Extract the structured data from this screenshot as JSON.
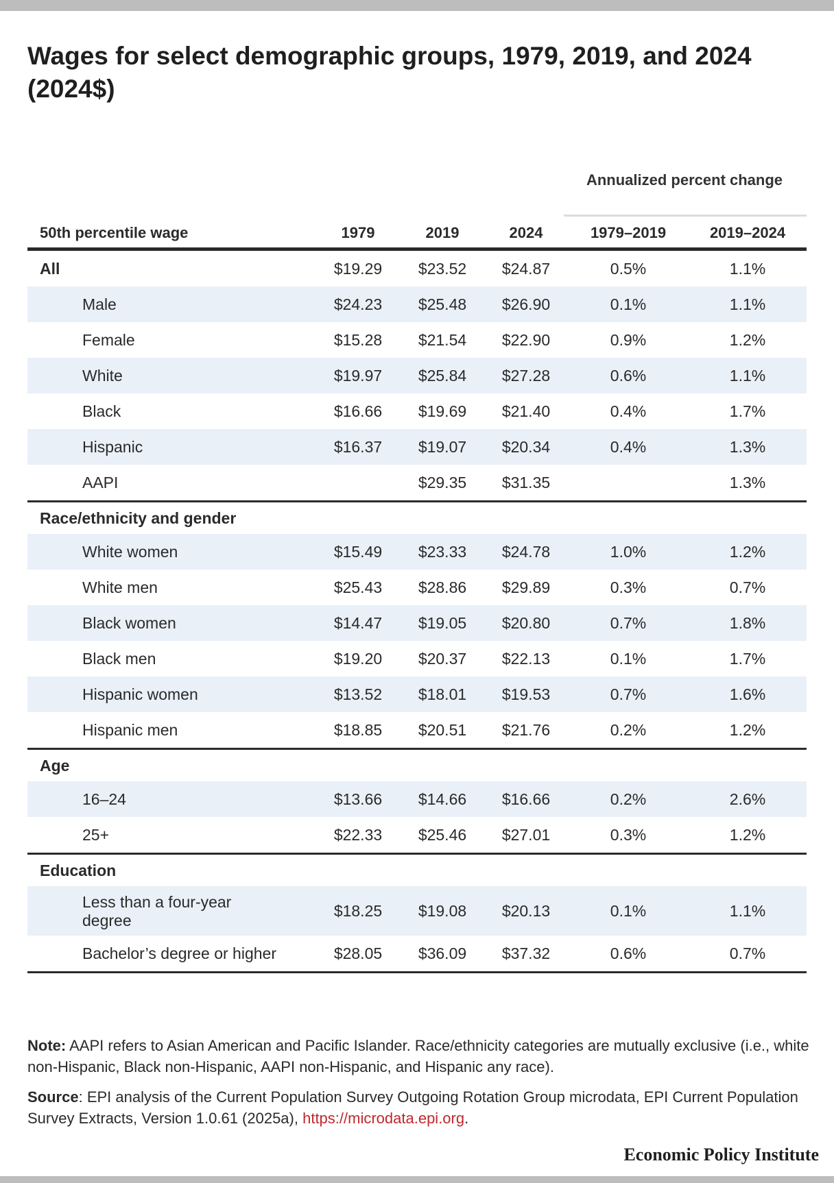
{
  "title": "Wages for select demographic groups, 1979, 2019, and 2024 (2024$)",
  "table": {
    "group_header": "Annualized percent change",
    "columns": [
      "50th percentile wage",
      "1979",
      "2019",
      "2024",
      "1979–2019",
      "2019–2024"
    ],
    "rows": [
      {
        "label": "All",
        "v1979": "$19.29",
        "v2019": "$23.52",
        "v2024": "$24.87",
        "c1": "0.5%",
        "c2": "1.1%"
      },
      {
        "label": "Male",
        "v1979": "$24.23",
        "v2019": "$25.48",
        "v2024": "$26.90",
        "c1": "0.1%",
        "c2": "1.1%"
      },
      {
        "label": "Female",
        "v1979": "$15.28",
        "v2019": "$21.54",
        "v2024": "$22.90",
        "c1": "0.9%",
        "c2": "1.2%"
      },
      {
        "label": "White",
        "v1979": "$19.97",
        "v2019": "$25.84",
        "v2024": "$27.28",
        "c1": "0.6%",
        "c2": "1.1%"
      },
      {
        "label": "Black",
        "v1979": "$16.66",
        "v2019": "$19.69",
        "v2024": "$21.40",
        "c1": "0.4%",
        "c2": "1.7%"
      },
      {
        "label": "Hispanic",
        "v1979": "$16.37",
        "v2019": "$19.07",
        "v2024": "$20.34",
        "c1": "0.4%",
        "c2": "1.3%"
      },
      {
        "label": "AAPI",
        "v1979": "",
        "v2019": "$29.35",
        "v2024": "$31.35",
        "c1": "",
        "c2": "1.3%"
      },
      {
        "label": "Race/ethnicity and gender"
      },
      {
        "label": "White women",
        "v1979": "$15.49",
        "v2019": "$23.33",
        "v2024": "$24.78",
        "c1": "1.0%",
        "c2": "1.2%"
      },
      {
        "label": "White men",
        "v1979": "$25.43",
        "v2019": "$28.86",
        "v2024": "$29.89",
        "c1": "0.3%",
        "c2": "0.7%"
      },
      {
        "label": "Black women",
        "v1979": "$14.47",
        "v2019": "$19.05",
        "v2024": "$20.80",
        "c1": "0.7%",
        "c2": "1.8%"
      },
      {
        "label": "Black men",
        "v1979": "$19.20",
        "v2019": "$20.37",
        "v2024": "$22.13",
        "c1": "0.1%",
        "c2": "1.7%"
      },
      {
        "label": "Hispanic women",
        "v1979": "$13.52",
        "v2019": "$18.01",
        "v2024": "$19.53",
        "c1": "0.7%",
        "c2": "1.6%"
      },
      {
        "label": "Hispanic men",
        "v1979": "$18.85",
        "v2019": "$20.51",
        "v2024": "$21.76",
        "c1": "0.2%",
        "c2": "1.2%"
      },
      {
        "label": "Age"
      },
      {
        "label": "16–24",
        "v1979": "$13.66",
        "v2019": "$14.66",
        "v2024": "$16.66",
        "c1": "0.2%",
        "c2": "2.6%"
      },
      {
        "label": "25+",
        "v1979": "$22.33",
        "v2019": "$25.46",
        "v2024": "$27.01",
        "c1": "0.3%",
        "c2": "1.2%"
      },
      {
        "label": "Education"
      },
      {
        "label": "Less than a four-year degree",
        "v1979": "$18.25",
        "v2019": "$19.08",
        "v2024": "$20.13",
        "c1": "0.1%",
        "c2": "1.1%"
      },
      {
        "label": "Bachelor’s degree or higher",
        "v1979": "$28.05",
        "v2019": "$36.09",
        "v2024": "$37.32",
        "c1": "0.6%",
        "c2": "0.7%"
      }
    ]
  },
  "note": {
    "label": "Note:",
    "text": " AAPI refers to Asian American and Pacific Islander. Race/ethnicity categories are mutually exclusive (i.e., white non-Hispanic, Black non-Hispanic, AAPI non-Hispanic, and Hispanic any race)."
  },
  "source": {
    "label": "Source",
    "text": ": EPI analysis of the Current Population Survey Outgoing Rotation Group microdata, EPI Current Population Survey Extracts, Version 1.0.61 (2025a), ",
    "link": "https://microdata.epi.org",
    "end": "."
  },
  "brand": "Economic Policy Institute",
  "colors": {
    "shade": "#e9f0f8",
    "link": "#c0282d",
    "rule": "#2a2a2a",
    "frame": "#bdbdbd"
  }
}
